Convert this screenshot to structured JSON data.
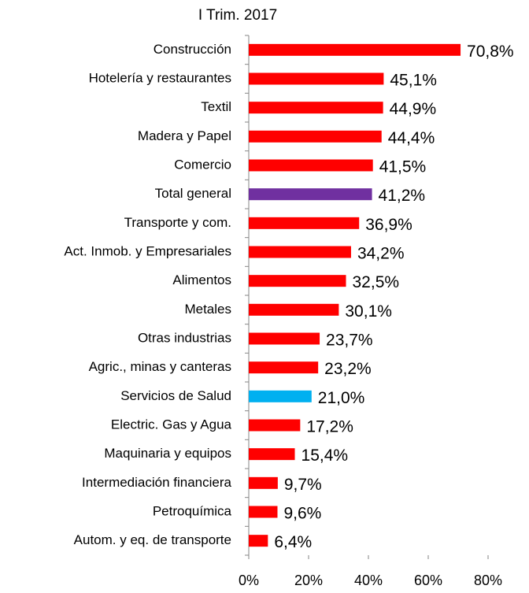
{
  "chart_data": {
    "type": "bar",
    "orientation": "horizontal",
    "subtitle": "I Trim. 2017",
    "categories": [
      "Construcción",
      "Hotelería y restaurantes",
      "Textil",
      "Madera y Papel",
      "Comercio",
      "Total general",
      "Transporte y com.",
      "Act. Inmob. y Empresariales",
      "Alimentos",
      "Metales",
      "Otras industrias",
      "Agric., minas  y canteras",
      "Servicios de Salud",
      "Electric. Gas y Agua",
      "Maquinaria y equipos",
      "Intermediación financiera",
      "Petroquímica",
      "Autom. y eq. de transporte"
    ],
    "values": [
      70.8,
      45.1,
      44.9,
      44.4,
      41.5,
      41.2,
      36.9,
      34.2,
      32.5,
      30.1,
      23.7,
      23.2,
      21.0,
      17.2,
      15.4,
      9.7,
      9.6,
      6.4
    ],
    "value_labels": [
      "70,8%",
      "45,1%",
      "44,9%",
      "44,4%",
      "41,5%",
      "41,2%",
      "36,9%",
      "34,2%",
      "32,5%",
      "30,1%",
      "23,7%",
      "23,2%",
      "21,0%",
      "17,2%",
      "15,4%",
      "9,7%",
      "9,6%",
      "6,4%"
    ],
    "colors": [
      "#ff0000",
      "#ff0000",
      "#ff0000",
      "#ff0000",
      "#ff0000",
      "#7030a0",
      "#ff0000",
      "#ff0000",
      "#ff0000",
      "#ff0000",
      "#ff0000",
      "#ff0000",
      "#00b0f0",
      "#ff0000",
      "#ff0000",
      "#ff0000",
      "#ff0000",
      "#ff0000"
    ],
    "xlim": [
      0,
      80
    ],
    "xticks": [
      {
        "value": 0,
        "label": "0%"
      },
      {
        "value": 20,
        "label": "20%"
      },
      {
        "value": 40,
        "label": "40%"
      },
      {
        "value": 60,
        "label": "60%"
      },
      {
        "value": 80,
        "label": "80%"
      }
    ],
    "grid": false
  }
}
